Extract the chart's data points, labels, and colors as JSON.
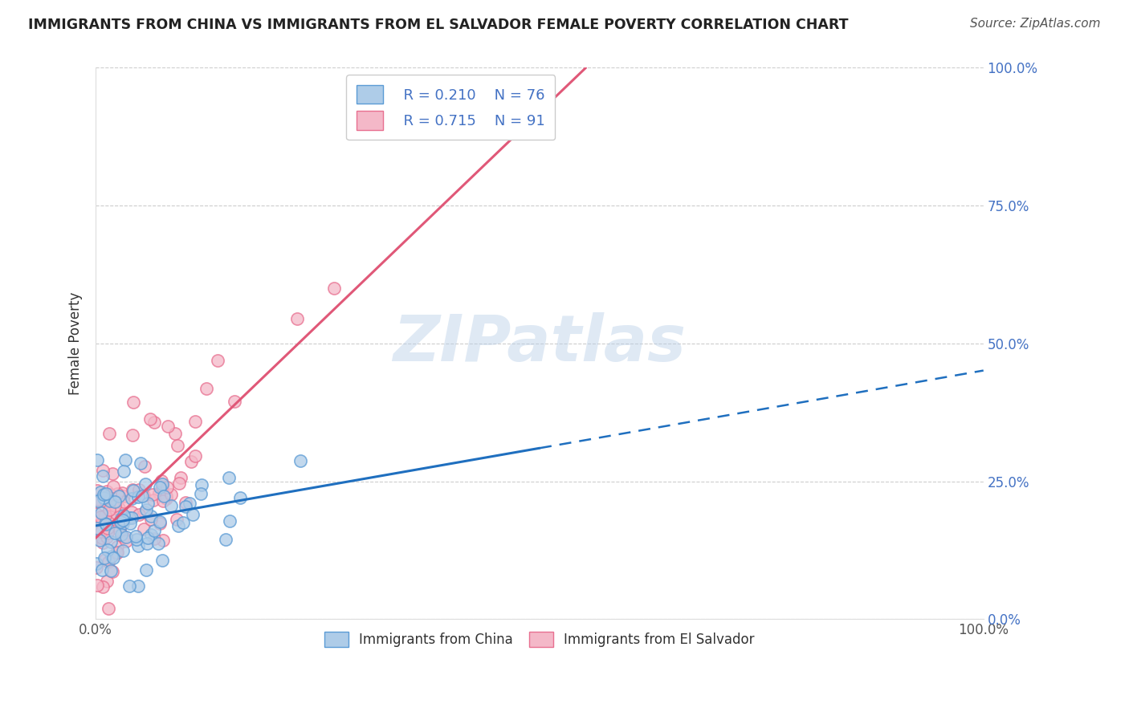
{
  "title": "IMMIGRANTS FROM CHINA VS IMMIGRANTS FROM EL SALVADOR FEMALE POVERTY CORRELATION CHART",
  "source": "Source: ZipAtlas.com",
  "ylabel": "Female Poverty",
  "xlim": [
    0.0,
    1.0
  ],
  "ylim": [
    0.0,
    1.0
  ],
  "china_color": "#5b9bd5",
  "china_color_fill": "#aecce8",
  "el_salvador_color": "#e87090",
  "el_salvador_color_fill": "#f4b8c8",
  "china_line_color": "#1f6fbf",
  "el_salvador_line_color": "#e05878",
  "china_R": 0.21,
  "china_N": 76,
  "el_salvador_R": 0.715,
  "el_salvador_N": 91,
  "watermark": "ZIPatlas",
  "background_color": "#ffffff",
  "grid_color": "#c8c8c8",
  "right_tick_color": "#4472c4",
  "title_color": "#222222",
  "source_color": "#555555"
}
